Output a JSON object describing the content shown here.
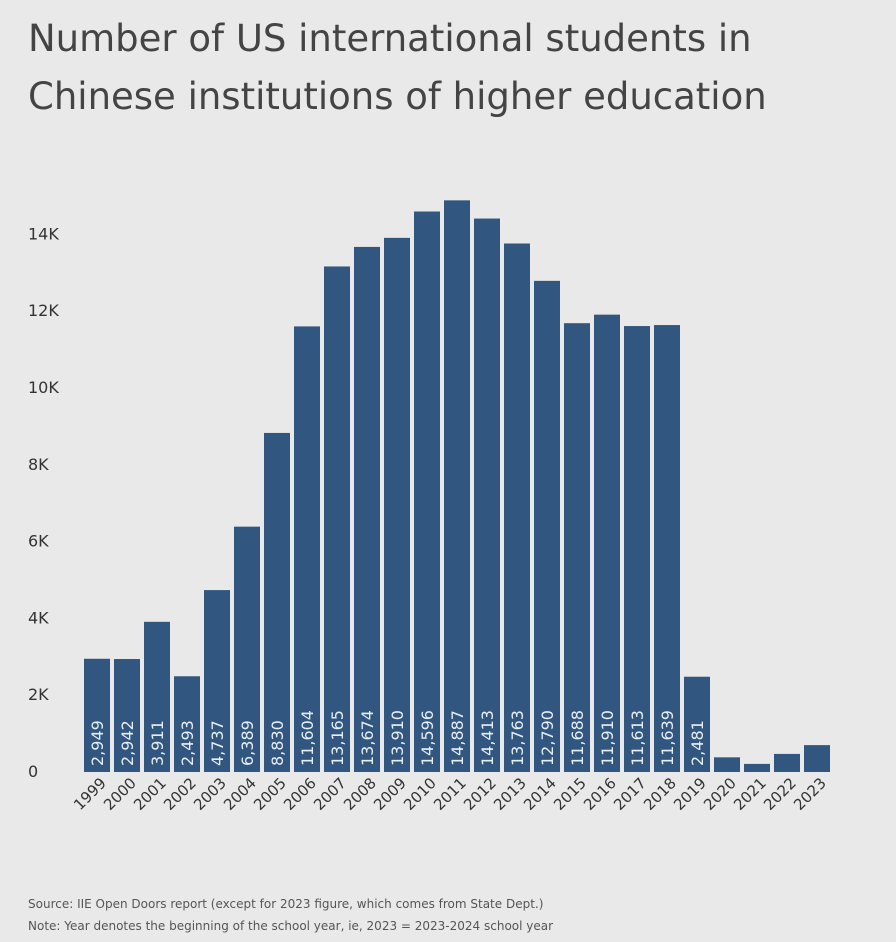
{
  "title": "Number of US international students in Chinese institutions of higher education",
  "colors": {
    "bar": "#315680",
    "bar_label": "#e8eef5",
    "axis_text": "#333333"
  },
  "chart_data": {
    "type": "bar",
    "title": "Number of US international students in Chinese institutions of higher education",
    "xlabel": "",
    "ylabel": "",
    "ylim": [
      0,
      15000
    ],
    "yticks": [
      0,
      2000,
      4000,
      6000,
      8000,
      10000,
      12000,
      14000
    ],
    "ytick_labels": [
      "0",
      "2K",
      "4K",
      "6K",
      "8K",
      "10K",
      "12K",
      "14K"
    ],
    "grid": false,
    "categories": [
      "1999",
      "2000",
      "2001",
      "2002",
      "2003",
      "2004",
      "2005",
      "2006",
      "2007",
      "2008",
      "2009",
      "2010",
      "2011",
      "2012",
      "2013",
      "2014",
      "2015",
      "2016",
      "2017",
      "2018",
      "2019",
      "2020",
      "2021",
      "2022",
      "2023"
    ],
    "values": [
      2949,
      2942,
      3911,
      2493,
      4737,
      6389,
      8830,
      11604,
      13165,
      13674,
      13910,
      14596,
      14887,
      14413,
      13763,
      12790,
      11688,
      11910,
      11613,
      11639,
      2481,
      382,
      211,
      471,
      700
    ],
    "data_labels": [
      "2,949",
      "2,942",
      "3,911",
      "2,493",
      "4,737",
      "6,389",
      "8,830",
      "11,604",
      "13,165",
      "13,674",
      "13,910",
      "14,596",
      "14,887",
      "14,413",
      "13,763",
      "12,790",
      "11,688",
      "11,910",
      "11,613",
      "11,639",
      "2,481",
      "",
      "",
      "",
      ""
    ]
  },
  "footer": {
    "source": "Source: IIE Open Doors report (except for 2023 figure, which comes from State Dept.)",
    "note": "Note: Year denotes the beginning of the school year, ie, 2023 = 2023-2024 school year"
  }
}
